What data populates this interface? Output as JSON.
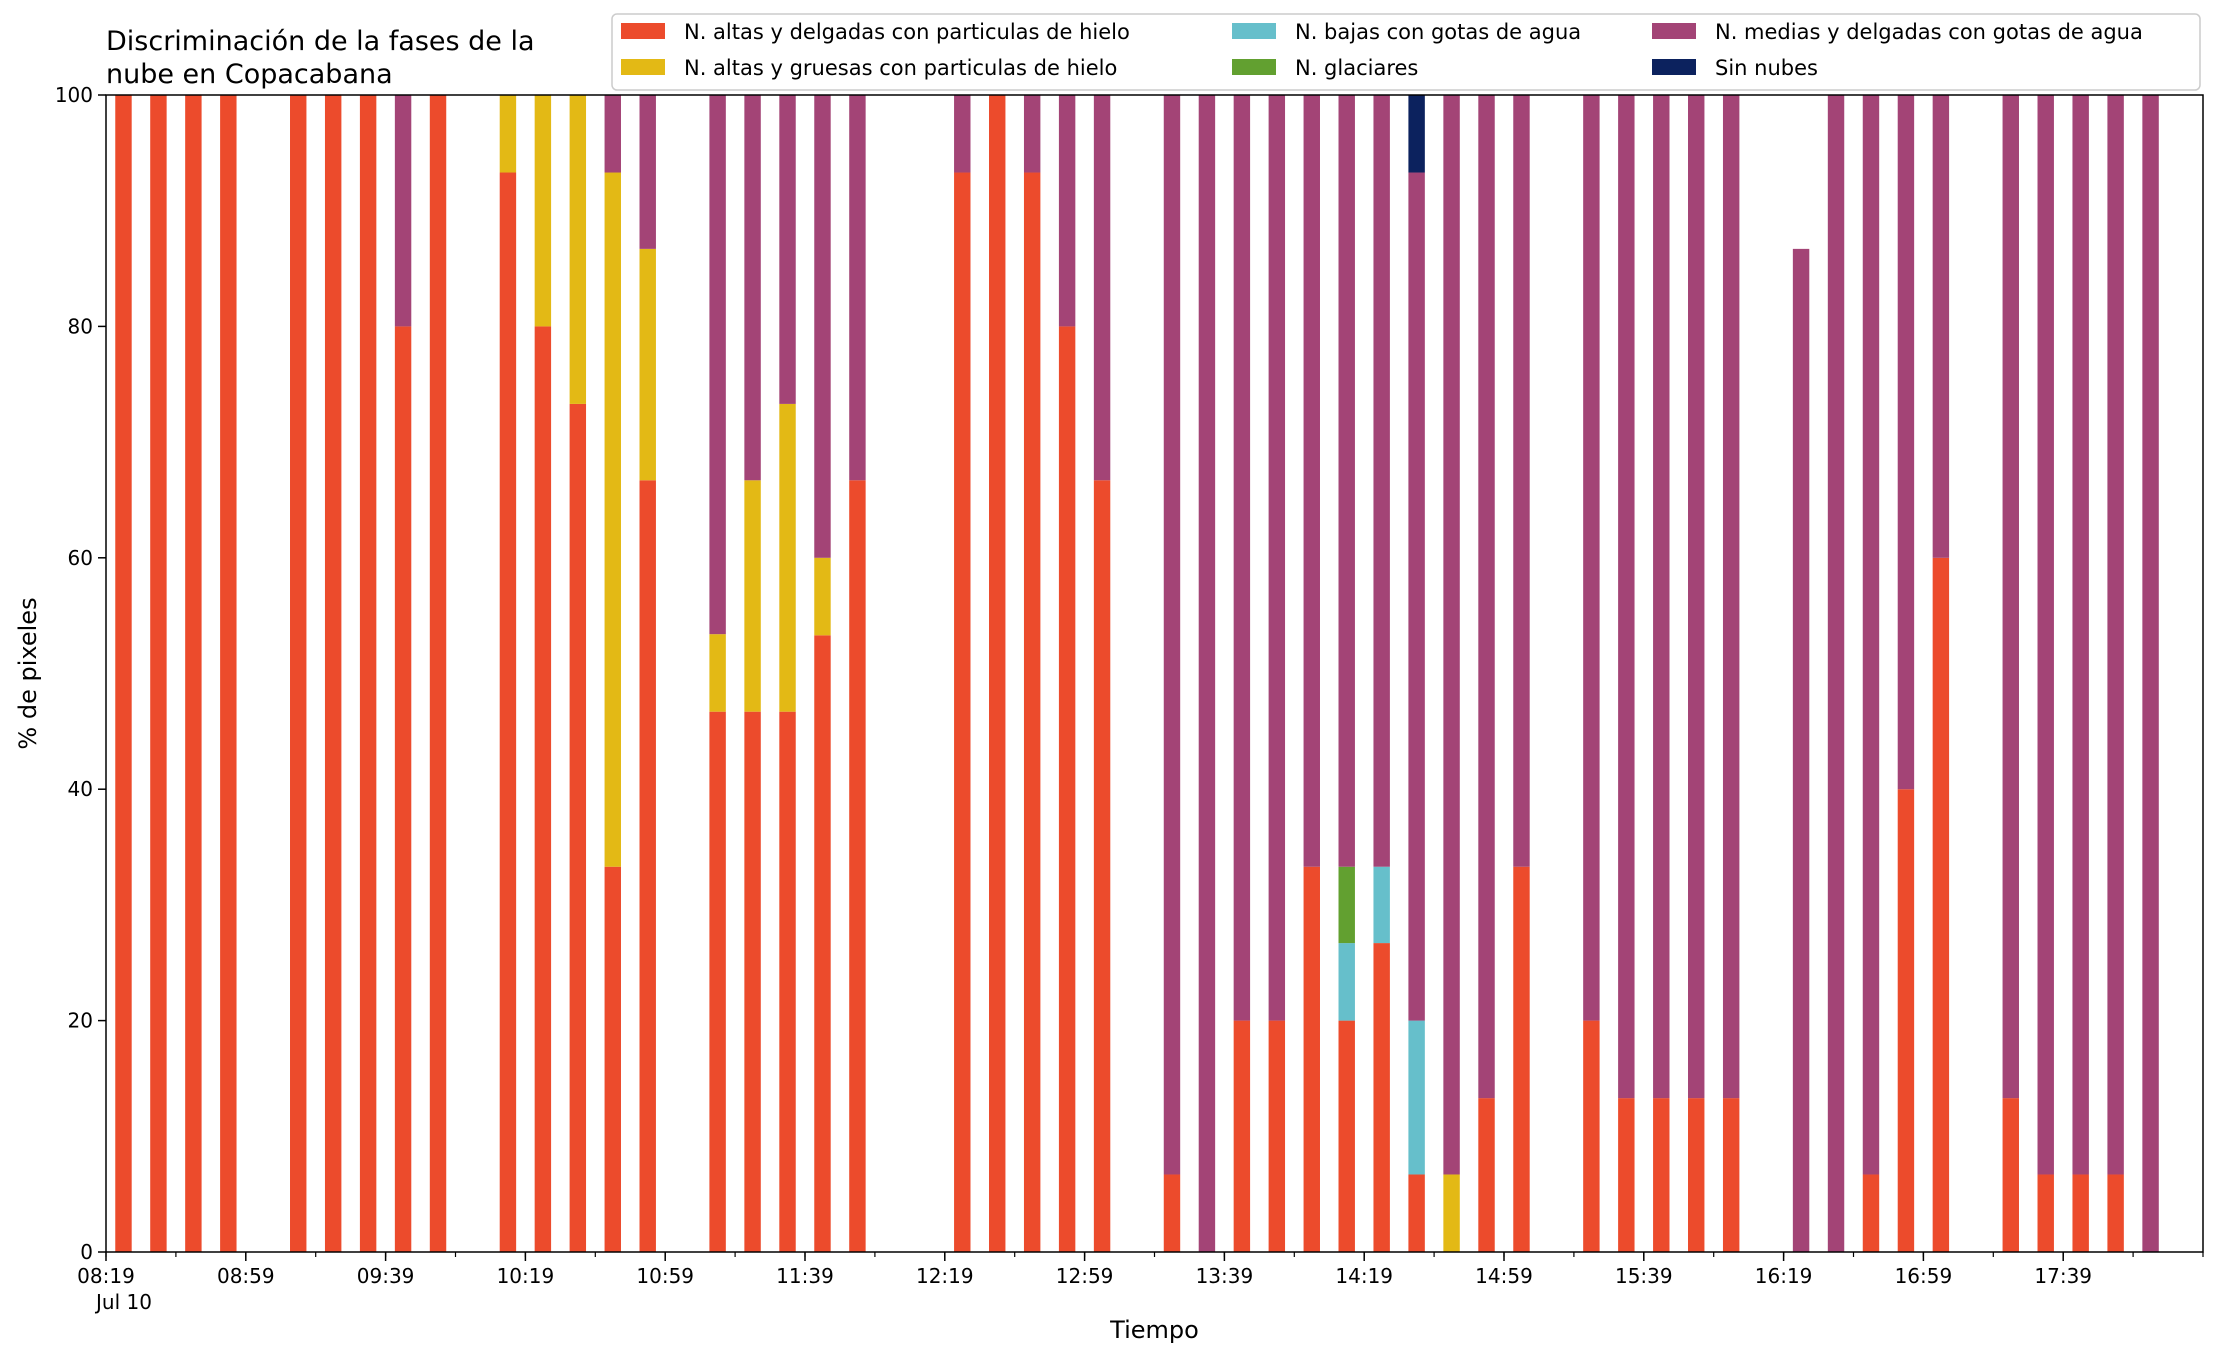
{
  "chart_data": {
    "type": "bar",
    "stacked": true,
    "title_lines": [
      "Discriminación de la fases de la",
      "nube en Copacabana"
    ],
    "xlabel": "Tiempo",
    "ylabel": "% de pixeles",
    "ylim": [
      0,
      100
    ],
    "yticks": [
      0,
      20,
      40,
      60,
      80,
      100
    ],
    "x_start": "08:19",
    "x_end": "17:59",
    "x_step_minutes": 10,
    "xtick_labels": [
      "08:19",
      "08:59",
      "09:39",
      "10:19",
      "10:59",
      "11:39",
      "12:19",
      "12:59",
      "13:39",
      "14:19",
      "14:59",
      "15:39",
      "16:19",
      "16:59",
      "17:39"
    ],
    "xtick_date_label": "Jul 10",
    "grid": false,
    "legend_position": "top-right",
    "colors": [
      "#ec4b2c",
      "#e3b915",
      "#66bfcb",
      "#62a030",
      "#a34476",
      "#0c225e"
    ],
    "series": [
      {
        "name": "N. altas y delgadas con particulas de hielo",
        "values": [
          100,
          100,
          100,
          100,
          0,
          100,
          100,
          100,
          80,
          100,
          0,
          93.3,
          80,
          73.3,
          33.3,
          66.7,
          0,
          46.7,
          46.7,
          46.7,
          53.3,
          66.7,
          0,
          0,
          93.3,
          100,
          93.3,
          80,
          66.7,
          0,
          6.7,
          0,
          20,
          20,
          33.3,
          20,
          26.7,
          6.7,
          0,
          13.3,
          33.3,
          0,
          20,
          13.3,
          13.3,
          13.3,
          13.3,
          0,
          0,
          0,
          6.7,
          40,
          60,
          0,
          13.3,
          6.7,
          6.7,
          6.7,
          0,
          0
        ]
      },
      {
        "name": "N. altas y gruesas con particulas de hielo",
        "values": [
          0,
          0,
          0,
          0,
          0,
          0,
          0,
          0,
          0,
          0,
          0,
          6.7,
          20,
          26.7,
          60,
          20,
          0,
          6.7,
          20,
          26.6,
          6.7,
          0,
          0,
          0,
          0,
          0,
          0,
          0,
          0,
          0,
          0,
          0,
          0,
          0,
          0,
          0,
          0,
          0,
          6.7,
          0,
          0,
          0,
          0,
          0,
          0,
          0,
          0,
          0,
          0,
          0,
          0,
          0,
          0,
          0,
          0,
          0,
          0,
          0,
          0,
          0
        ]
      },
      {
        "name": "N. bajas con gotas de agua",
        "values": [
          0,
          0,
          0,
          0,
          0,
          0,
          0,
          0,
          0,
          0,
          0,
          0,
          0,
          0,
          0,
          0,
          0,
          0,
          0,
          0,
          0,
          0,
          0,
          0,
          0,
          0,
          0,
          0,
          0,
          0,
          0,
          0,
          0,
          0,
          0,
          6.7,
          6.6,
          13.3,
          0,
          0,
          0,
          0,
          0,
          0,
          0,
          0,
          0,
          0,
          0,
          0,
          0,
          0,
          0,
          0,
          0,
          0,
          0,
          0,
          0,
          0
        ]
      },
      {
        "name": "N. glaciares",
        "values": [
          0,
          0,
          0,
          0,
          0,
          0,
          0,
          0,
          0,
          0,
          0,
          0,
          0,
          0,
          0,
          0,
          0,
          0,
          0,
          0,
          0,
          0,
          0,
          0,
          0,
          0,
          0,
          0,
          0,
          0,
          0,
          0,
          0,
          0,
          0,
          6.6,
          0,
          0,
          0,
          0,
          0,
          0,
          0,
          0,
          0,
          0,
          0,
          0,
          0,
          0,
          0,
          0,
          0,
          0,
          0,
          0,
          0,
          0,
          0,
          0
        ]
      },
      {
        "name": "N. medias y delgadas con gotas de agua",
        "values": [
          0,
          0,
          0,
          0,
          0,
          0,
          0,
          0,
          20,
          0,
          0,
          0,
          0,
          0,
          6.7,
          13.3,
          0,
          46.6,
          33.3,
          26.7,
          40,
          33.3,
          0,
          0,
          6.7,
          0,
          6.7,
          20,
          33.3,
          0,
          93.3,
          100,
          80,
          80,
          66.7,
          66.7,
          66.7,
          73.3,
          93.3,
          86.7,
          66.7,
          0,
          80,
          86.7,
          86.7,
          86.7,
          86.7,
          0,
          86.7,
          100,
          93.3,
          60,
          40,
          0,
          86.7,
          93.3,
          93.3,
          93.3,
          100,
          0
        ]
      },
      {
        "name": "Sin nubes",
        "values": [
          0,
          0,
          0,
          0,
          0,
          0,
          0,
          0,
          0,
          0,
          0,
          0,
          0,
          0,
          0,
          0,
          0,
          0,
          0,
          0,
          0,
          0,
          0,
          0,
          0,
          0,
          0,
          0,
          0,
          0,
          0,
          0,
          0,
          0,
          0,
          0,
          0,
          6.7,
          0,
          0,
          0,
          0,
          0,
          0,
          0,
          0,
          0,
          0,
          0,
          0,
          0,
          0,
          0,
          0,
          0,
          0,
          0,
          0,
          0,
          0
        ]
      }
    ]
  }
}
